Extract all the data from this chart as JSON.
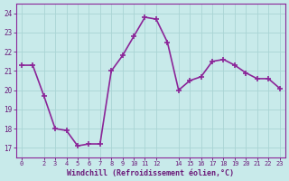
{
  "x": [
    0,
    1,
    2,
    3,
    4,
    5,
    6,
    7,
    8,
    9,
    10,
    11,
    12,
    13,
    14,
    15,
    16,
    17,
    18,
    19,
    20,
    21,
    22,
    23
  ],
  "y": [
    21.3,
    21.3,
    19.7,
    18.0,
    17.9,
    17.1,
    17.2,
    17.2,
    21.0,
    21.8,
    22.8,
    23.8,
    23.7,
    22.5,
    20.0,
    20.5,
    20.7,
    21.5,
    21.6,
    21.3,
    20.9,
    20.6,
    20.6,
    20.1
  ],
  "line_color": "#8b2598",
  "marker": "+",
  "marker_size": 5,
  "bg_color": "#c8eaea",
  "grid_color": "#aad4d4",
  "xlabel": "Windchill (Refroidissement éolien,°C)",
  "xlabel_color": "#6b1a7a",
  "tick_color": "#6b1a7a",
  "xlim": [
    -0.5,
    23.5
  ],
  "ylim": [
    16.5,
    24.5
  ],
  "yticks": [
    17,
    18,
    19,
    20,
    21,
    22,
    23,
    24
  ],
  "xticks": [
    0,
    2,
    3,
    4,
    5,
    6,
    7,
    8,
    9,
    10,
    11,
    12,
    14,
    15,
    16,
    17,
    18,
    19,
    20,
    21,
    22,
    23
  ],
  "spine_color": "#8b2598",
  "linewidth": 1.2
}
